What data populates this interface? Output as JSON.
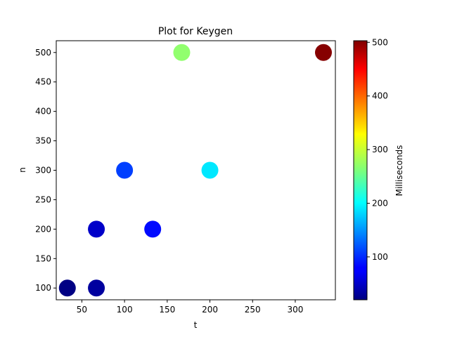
{
  "chart_data": {
    "type": "scatter",
    "title": "Plot for Keygen",
    "xlabel": "t",
    "ylabel": "n",
    "xlim": [
      20,
      347
    ],
    "ylim": [
      80,
      520
    ],
    "xticks": [
      50,
      100,
      150,
      200,
      250,
      300
    ],
    "yticks": [
      100,
      150,
      200,
      250,
      300,
      350,
      400,
      450,
      500
    ],
    "grid": false,
    "colorbar": {
      "label": "Milliseconds",
      "range": [
        20,
        503
      ],
      "ticks": [
        100,
        200,
        300,
        400,
        500
      ],
      "colormap": "jet"
    },
    "points": [
      {
        "t": 33,
        "n": 100,
        "ms": 22
      },
      {
        "t": 67,
        "n": 100,
        "ms": 35
      },
      {
        "t": 67,
        "n": 200,
        "ms": 55
      },
      {
        "t": 100,
        "n": 300,
        "ms": 110
      },
      {
        "t": 133,
        "n": 200,
        "ms": 85
      },
      {
        "t": 167,
        "n": 500,
        "ms": 270
      },
      {
        "t": 200,
        "n": 300,
        "ms": 190
      },
      {
        "t": 333,
        "n": 500,
        "ms": 500
      }
    ]
  }
}
